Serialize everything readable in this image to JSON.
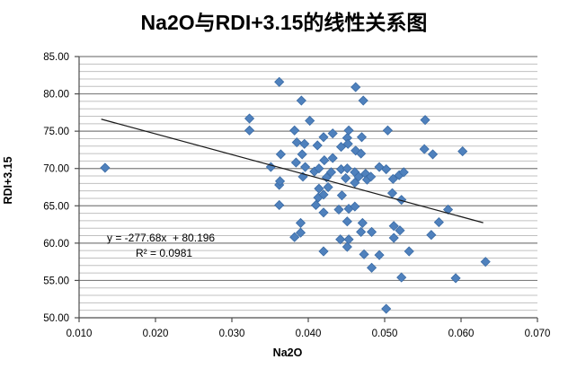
{
  "chart_data": {
    "type": "scatter",
    "title": "Na2O与RDI+3.15的线性关系图",
    "xlabel": "Na2O",
    "ylabel": "RDI+3.15",
    "xlim": [
      0.01,
      0.07
    ],
    "ylim": [
      50.0,
      85.0
    ],
    "x_ticks": [
      "0.010",
      "0.020",
      "0.030",
      "0.040",
      "0.050",
      "0.060",
      "0.070"
    ],
    "y_ticks": [
      "85.00",
      "80.00",
      "75.00",
      "70.00",
      "65.00",
      "60.00",
      "55.00",
      "50.00"
    ],
    "y_major_unit": 5,
    "y_minor_unit": 1,
    "grid": "horizontal major+minor, no vertical",
    "legend": "none",
    "marker": {
      "shape": "diamond",
      "fill": "#4f81bd",
      "stroke": "#3a6ba5",
      "size": 10
    },
    "colors": {
      "major_grid": "#7f7f7f",
      "minor_grid": "#c0c0c0",
      "axis": "#4d4d4d",
      "tick_text": "#000000",
      "trendline": "#1a1a1a"
    },
    "points": [
      [
        0.0134,
        70.1
      ],
      [
        0.0323,
        76.7
      ],
      [
        0.0323,
        75.1
      ],
      [
        0.0351,
        70.2
      ],
      [
        0.0362,
        81.6
      ],
      [
        0.0362,
        67.8
      ],
      [
        0.0362,
        65.1
      ],
      [
        0.0363,
        68.3
      ],
      [
        0.0364,
        71.9
      ],
      [
        0.0382,
        75.1
      ],
      [
        0.0382,
        60.8
      ],
      [
        0.0384,
        70.8
      ],
      [
        0.0385,
        73.5
      ],
      [
        0.039,
        62.7
      ],
      [
        0.039,
        61.4
      ],
      [
        0.0391,
        79.1
      ],
      [
        0.0392,
        71.9
      ],
      [
        0.0393,
        68.9
      ],
      [
        0.0395,
        73.3
      ],
      [
        0.0396,
        70.2
      ],
      [
        0.0402,
        76.4
      ],
      [
        0.0408,
        69.6
      ],
      [
        0.041,
        65.1
      ],
      [
        0.0412,
        73.1
      ],
      [
        0.0413,
        66.1
      ],
      [
        0.0414,
        70.0
      ],
      [
        0.0414,
        67.3
      ],
      [
        0.042,
        74.2
      ],
      [
        0.042,
        66.5
      ],
      [
        0.042,
        64.1
      ],
      [
        0.042,
        58.9
      ],
      [
        0.0421,
        71.1
      ],
      [
        0.0424,
        68.8
      ],
      [
        0.0426,
        67.5
      ],
      [
        0.043,
        69.5
      ],
      [
        0.0432,
        74.7
      ],
      [
        0.0432,
        71.4
      ],
      [
        0.044,
        64.5
      ],
      [
        0.0442,
        60.5
      ],
      [
        0.0443,
        72.9
      ],
      [
        0.0443,
        69.9
      ],
      [
        0.0444,
        66.4
      ],
      [
        0.0449,
        68.7
      ],
      [
        0.0451,
        74.1
      ],
      [
        0.0451,
        70.0
      ],
      [
        0.0451,
        62.9
      ],
      [
        0.0451,
        59.5
      ],
      [
        0.0452,
        73.3
      ],
      [
        0.0453,
        75.1
      ],
      [
        0.0453,
        64.6
      ],
      [
        0.0453,
        60.5
      ],
      [
        0.0461,
        69.5
      ],
      [
        0.0461,
        68.1
      ],
      [
        0.0461,
        64.9
      ],
      [
        0.0462,
        80.9
      ],
      [
        0.0462,
        72.4
      ],
      [
        0.0466,
        68.9
      ],
      [
        0.0469,
        72.0
      ],
      [
        0.0469,
        61.5
      ],
      [
        0.047,
        74.2
      ],
      [
        0.0471,
        62.7
      ],
      [
        0.0472,
        79.1
      ],
      [
        0.0473,
        58.5
      ],
      [
        0.0475,
        69.3
      ],
      [
        0.0477,
        68.5
      ],
      [
        0.0482,
        68.9
      ],
      [
        0.0483,
        61.5
      ],
      [
        0.0483,
        56.7
      ],
      [
        0.0493,
        70.2
      ],
      [
        0.0493,
        58.4
      ],
      [
        0.0502,
        69.9
      ],
      [
        0.0502,
        51.2
      ],
      [
        0.0504,
        75.1
      ],
      [
        0.051,
        66.7
      ],
      [
        0.0511,
        68.6
      ],
      [
        0.0512,
        62.3
      ],
      [
        0.0512,
        60.7
      ],
      [
        0.0519,
        69.1
      ],
      [
        0.052,
        61.7
      ],
      [
        0.0522,
        65.8
      ],
      [
        0.0522,
        55.4
      ],
      [
        0.0525,
        69.5
      ],
      [
        0.0532,
        58.9
      ],
      [
        0.0552,
        72.6
      ],
      [
        0.0553,
        76.5
      ],
      [
        0.0561,
        61.1
      ],
      [
        0.0563,
        71.9
      ],
      [
        0.0571,
        62.8
      ],
      [
        0.0583,
        64.5
      ],
      [
        0.0593,
        55.3
      ],
      [
        0.0602,
        72.3
      ],
      [
        0.0632,
        57.5
      ]
    ],
    "trendline": {
      "type": "linear",
      "slope": -277.68,
      "intercept": 80.196,
      "r2": 0.0981,
      "x_start": 0.0129,
      "x_end": 0.0629,
      "equation_label": "y = -277.68x  + 80.196",
      "r2_label": "R² = 0.0981"
    }
  }
}
